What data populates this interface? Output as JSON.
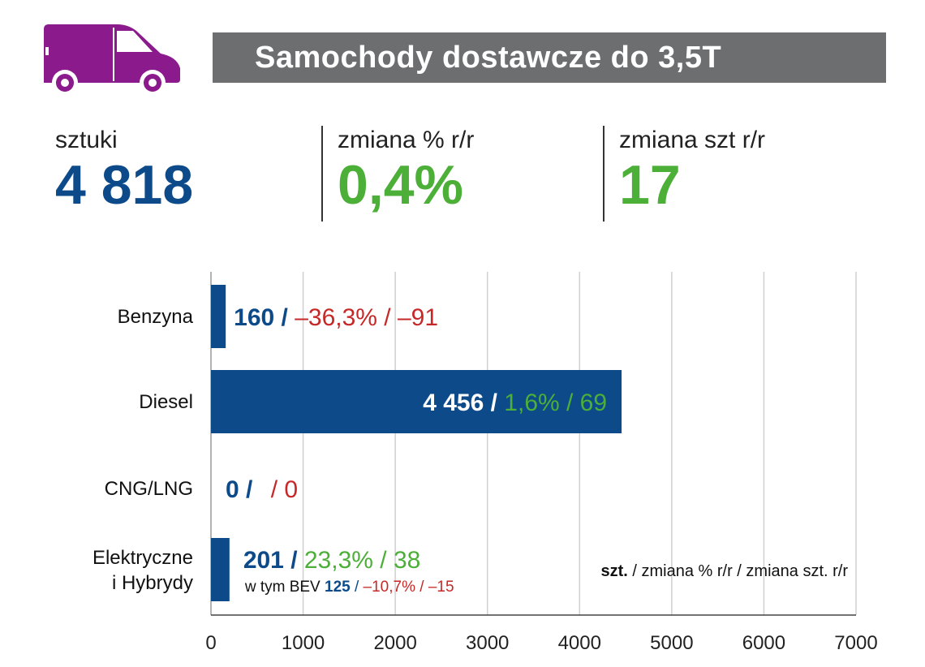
{
  "header": {
    "title": "Samochody dostawcze do 3,5T",
    "van_icon": "van-icon",
    "icon_color": "#8b1a8c",
    "bar_color": "#6d6e70"
  },
  "kpis": [
    {
      "label": "sztuki",
      "value": "4 818",
      "color": "#0c4a8a"
    },
    {
      "label": "zmiana % r/r",
      "value": "0,4%",
      "color": "#4caf38"
    },
    {
      "label": "zmiana szt r/r",
      "value": "17",
      "color": "#4caf38"
    }
  ],
  "legend_note": {
    "bold": "szt.",
    "rest": " / zmiana % r/r / zmiana szt. r/r"
  },
  "chart_data": {
    "type": "bar",
    "orientation": "horizontal",
    "categories": [
      "Benzyna",
      "Diesel",
      "CNG/LNG",
      "Elektryczne i Hybrydy"
    ],
    "category_lines": [
      [
        "Benzyna"
      ],
      [
        "Diesel"
      ],
      [
        "CNG/LNG"
      ],
      [
        "Elektryczne",
        "i Hybrydy"
      ]
    ],
    "values": [
      160,
      4456,
      0,
      201
    ],
    "value_labels": [
      "160",
      "4 456",
      "0",
      "201"
    ],
    "pct_change": [
      "–36,3%",
      "1,6%",
      "",
      "23,3%"
    ],
    "unit_change": [
      "–91",
      "69",
      "0",
      "38"
    ],
    "change_colors": [
      "#c62828",
      "#4caf38",
      "#c62828",
      "#4caf38"
    ],
    "sub_note": {
      "prefix": "w tym BEV",
      "value": "125",
      "pct": "–10,7%",
      "units": "–15"
    },
    "xlim": [
      0,
      7000
    ],
    "xticks": [
      "0",
      "1000",
      "2000",
      "3000",
      "4000",
      "5000",
      "6000",
      "7000"
    ],
    "grid": true,
    "bar_color": "#0c4a8a",
    "label_color": "#0c4a8a"
  }
}
